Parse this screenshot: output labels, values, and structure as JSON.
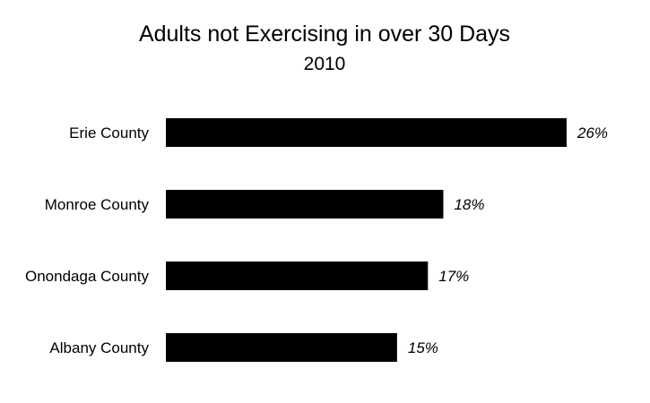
{
  "chart_data": {
    "type": "bar",
    "orientation": "horizontal",
    "title": "Adults not Exercising in over 30 Days",
    "subtitle": "2010",
    "categories": [
      "Erie County",
      "Monroe County",
      "Onondaga County",
      "Albany County"
    ],
    "values": [
      26,
      18,
      17,
      15
    ],
    "data_labels": [
      "26%",
      "18%",
      "17%",
      "15%"
    ],
    "xlabel": "",
    "ylabel": "",
    "xlim": [
      0,
      26
    ],
    "grid": false,
    "legend": "none",
    "bar_color": "#000000"
  }
}
